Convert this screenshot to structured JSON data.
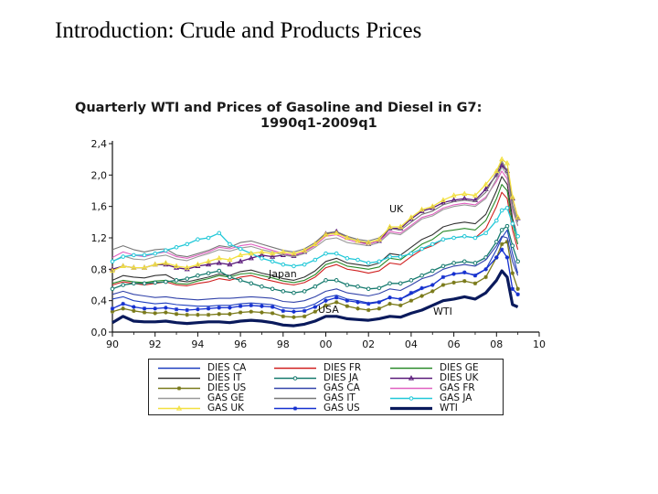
{
  "slide": {
    "title": "Introduction:  Crude and Products Prices"
  },
  "chart_data": {
    "type": "line",
    "title": "Quarterly WTI and  Prices of Gasoline and Diesel in G7:",
    "subtitle": "1990q1-2009q1",
    "xlabel": "",
    "ylabel": "",
    "xlim": [
      1990,
      2010
    ],
    "ylim": [
      0,
      2.4
    ],
    "x_ticks": [
      "90",
      "92",
      "94",
      "96",
      "98",
      "00",
      "02",
      "04",
      "06",
      "08",
      "10"
    ],
    "y_ticks": [
      "0,0",
      "0,4",
      "0,8",
      "1,2",
      "1,6",
      "2,0",
      "2,4"
    ],
    "annotations": [
      "UK",
      "Japan",
      "USA",
      "WTI"
    ],
    "grid": false,
    "legend_position": "bottom",
    "x": [
      1990.0,
      1990.5,
      1991.0,
      1991.5,
      1992.0,
      1992.5,
      1993.0,
      1993.5,
      1994.0,
      1994.5,
      1995.0,
      1995.5,
      1996.0,
      1996.5,
      1997.0,
      1997.5,
      1998.0,
      1998.5,
      1999.0,
      1999.5,
      2000.0,
      2000.5,
      2001.0,
      2001.5,
      2002.0,
      2002.5,
      2003.0,
      2003.5,
      2004.0,
      2004.5,
      2005.0,
      2005.5,
      2006.0,
      2006.5,
      2007.0,
      2007.5,
      2008.0,
      2008.25,
      2008.5,
      2008.75,
      2009.0
    ],
    "series": [
      {
        "name": "DIES CA",
        "color": "#1f3fbf",
        "style": "plain",
        "values": [
          0.42,
          0.45,
          0.4,
          0.38,
          0.36,
          0.37,
          0.35,
          0.34,
          0.33,
          0.33,
          0.34,
          0.34,
          0.36,
          0.37,
          0.36,
          0.35,
          0.31,
          0.3,
          0.31,
          0.36,
          0.44,
          0.47,
          0.42,
          0.4,
          0.37,
          0.39,
          0.44,
          0.42,
          0.48,
          0.55,
          0.6,
          0.7,
          0.74,
          0.75,
          0.73,
          0.8,
          1.05,
          1.2,
          1.3,
          1.0,
          0.75
        ]
      },
      {
        "name": "DIES FR",
        "color": "#d02020",
        "style": "plain",
        "values": [
          0.6,
          0.64,
          0.62,
          0.6,
          0.62,
          0.64,
          0.6,
          0.59,
          0.62,
          0.64,
          0.68,
          0.66,
          0.7,
          0.72,
          0.68,
          0.65,
          0.62,
          0.6,
          0.63,
          0.7,
          0.82,
          0.86,
          0.8,
          0.78,
          0.75,
          0.78,
          0.88,
          0.86,
          0.96,
          1.05,
          1.1,
          1.18,
          1.2,
          1.22,
          1.2,
          1.32,
          1.6,
          1.78,
          1.7,
          1.3,
          1.05
        ]
      },
      {
        "name": "DIES GE",
        "color": "#2a8a2a",
        "style": "plain",
        "values": [
          0.62,
          0.66,
          0.64,
          0.63,
          0.65,
          0.66,
          0.62,
          0.61,
          0.65,
          0.68,
          0.72,
          0.7,
          0.74,
          0.75,
          0.72,
          0.69,
          0.65,
          0.63,
          0.66,
          0.73,
          0.86,
          0.9,
          0.84,
          0.82,
          0.8,
          0.83,
          0.94,
          0.92,
          1.02,
          1.12,
          1.18,
          1.28,
          1.3,
          1.32,
          1.3,
          1.42,
          1.7,
          1.88,
          1.8,
          1.38,
          1.12
        ]
      },
      {
        "name": "DIES IT",
        "color": "#333333",
        "style": "plain",
        "values": [
          0.66,
          0.72,
          0.7,
          0.69,
          0.72,
          0.73,
          0.66,
          0.64,
          0.67,
          0.7,
          0.74,
          0.72,
          0.77,
          0.79,
          0.75,
          0.72,
          0.68,
          0.66,
          0.7,
          0.78,
          0.9,
          0.94,
          0.88,
          0.86,
          0.84,
          0.88,
          1.0,
          0.98,
          1.08,
          1.18,
          1.24,
          1.34,
          1.38,
          1.4,
          1.38,
          1.5,
          1.8,
          1.98,
          1.88,
          1.45,
          1.2
        ]
      },
      {
        "name": "DIES JA",
        "color": "#157a6e",
        "style": "circle",
        "values": [
          0.55,
          0.6,
          0.62,
          0.62,
          0.63,
          0.64,
          0.66,
          0.68,
          0.72,
          0.75,
          0.78,
          0.7,
          0.66,
          0.62,
          0.58,
          0.55,
          0.52,
          0.5,
          0.52,
          0.58,
          0.66,
          0.66,
          0.6,
          0.58,
          0.55,
          0.56,
          0.62,
          0.62,
          0.66,
          0.72,
          0.78,
          0.84,
          0.88,
          0.9,
          0.88,
          0.95,
          1.15,
          1.3,
          1.35,
          1.1,
          0.9
        ]
      },
      {
        "name": "DIES UK",
        "color": "#5a1a7a",
        "style": "triangle",
        "values": [
          0.8,
          0.84,
          0.82,
          0.82,
          0.86,
          0.86,
          0.82,
          0.8,
          0.84,
          0.86,
          0.88,
          0.86,
          0.9,
          0.94,
          0.98,
          0.96,
          0.98,
          0.97,
          1.02,
          1.12,
          1.25,
          1.28,
          1.2,
          1.16,
          1.12,
          1.16,
          1.32,
          1.32,
          1.44,
          1.54,
          1.58,
          1.65,
          1.68,
          1.7,
          1.68,
          1.82,
          2.0,
          2.12,
          2.05,
          1.7,
          1.45
        ]
      },
      {
        "name": "DIES US",
        "color": "#7a7a1a",
        "style": "star",
        "values": [
          0.26,
          0.3,
          0.27,
          0.25,
          0.24,
          0.25,
          0.23,
          0.22,
          0.22,
          0.22,
          0.23,
          0.23,
          0.25,
          0.26,
          0.25,
          0.24,
          0.2,
          0.19,
          0.2,
          0.26,
          0.34,
          0.38,
          0.33,
          0.3,
          0.28,
          0.3,
          0.36,
          0.34,
          0.4,
          0.46,
          0.52,
          0.6,
          0.63,
          0.65,
          0.62,
          0.7,
          0.95,
          1.12,
          1.15,
          0.75,
          0.55
        ]
      },
      {
        "name": "GAS CA",
        "color": "#3344aa",
        "style": "plain",
        "values": [
          0.48,
          0.52,
          0.48,
          0.46,
          0.44,
          0.45,
          0.43,
          0.42,
          0.41,
          0.42,
          0.43,
          0.43,
          0.44,
          0.45,
          0.44,
          0.43,
          0.39,
          0.38,
          0.4,
          0.45,
          0.52,
          0.55,
          0.5,
          0.48,
          0.46,
          0.49,
          0.55,
          0.53,
          0.6,
          0.68,
          0.72,
          0.8,
          0.84,
          0.86,
          0.84,
          0.92,
          1.1,
          1.22,
          1.2,
          0.9,
          0.72
        ]
      },
      {
        "name": "GAS FR",
        "color": "#e060c0",
        "style": "plain",
        "values": [
          0.95,
          1.02,
          0.98,
          0.96,
          1.0,
          1.02,
          0.96,
          0.94,
          0.98,
          1.02,
          1.08,
          1.06,
          1.1,
          1.12,
          1.08,
          1.04,
          1.0,
          0.98,
          1.02,
          1.1,
          1.22,
          1.24,
          1.18,
          1.14,
          1.12,
          1.16,
          1.28,
          1.26,
          1.36,
          1.46,
          1.5,
          1.58,
          1.62,
          1.64,
          1.62,
          1.72,
          1.92,
          2.05,
          1.95,
          1.55,
          1.35
        ]
      },
      {
        "name": "GAS GE",
        "color": "#999999",
        "style": "plain",
        "values": [
          0.9,
          0.97,
          0.93,
          0.92,
          0.96,
          0.98,
          0.93,
          0.91,
          0.96,
          1.0,
          1.05,
          1.03,
          1.07,
          1.09,
          1.05,
          1.02,
          0.98,
          0.96,
          1.0,
          1.08,
          1.18,
          1.2,
          1.14,
          1.12,
          1.1,
          1.14,
          1.26,
          1.24,
          1.34,
          1.44,
          1.48,
          1.56,
          1.6,
          1.62,
          1.6,
          1.7,
          1.95,
          2.1,
          2.0,
          1.58,
          1.36
        ]
      },
      {
        "name": "GAS IT",
        "color": "#777777",
        "style": "plain",
        "values": [
          1.05,
          1.1,
          1.05,
          1.02,
          1.05,
          1.06,
          0.98,
          0.96,
          1.0,
          1.04,
          1.1,
          1.08,
          1.14,
          1.16,
          1.12,
          1.08,
          1.04,
          1.02,
          1.06,
          1.14,
          1.26,
          1.28,
          1.22,
          1.18,
          1.16,
          1.2,
          1.32,
          1.3,
          1.4,
          1.5,
          1.54,
          1.62,
          1.66,
          1.68,
          1.66,
          1.78,
          2.02,
          2.18,
          2.05,
          1.62,
          1.4
        ]
      },
      {
        "name": "GAS JA",
        "color": "#20c8d8",
        "style": "circle",
        "values": [
          0.9,
          0.96,
          0.98,
          0.98,
          1.0,
          1.04,
          1.08,
          1.12,
          1.18,
          1.2,
          1.26,
          1.12,
          1.06,
          1.0,
          0.94,
          0.9,
          0.86,
          0.84,
          0.86,
          0.92,
          1.0,
          1.0,
          0.94,
          0.92,
          0.88,
          0.9,
          0.96,
          0.96,
          1.0,
          1.06,
          1.12,
          1.18,
          1.2,
          1.22,
          1.2,
          1.26,
          1.42,
          1.55,
          1.58,
          1.38,
          1.22
        ]
      },
      {
        "name": "GAS UK",
        "color": "#f2e040",
        "style": "triangle",
        "values": [
          0.78,
          0.84,
          0.82,
          0.82,
          0.86,
          0.88,
          0.84,
          0.82,
          0.86,
          0.9,
          0.94,
          0.92,
          0.98,
          1.0,
          1.02,
          1.0,
          1.02,
          1.0,
          1.04,
          1.12,
          1.24,
          1.26,
          1.2,
          1.16,
          1.14,
          1.18,
          1.34,
          1.34,
          1.46,
          1.56,
          1.6,
          1.68,
          1.74,
          1.76,
          1.74,
          1.88,
          2.05,
          2.2,
          2.15,
          1.72,
          1.46
        ]
      },
      {
        "name": "GAS US",
        "color": "#1530d0",
        "style": "star",
        "values": [
          0.3,
          0.36,
          0.32,
          0.3,
          0.3,
          0.31,
          0.29,
          0.28,
          0.29,
          0.3,
          0.31,
          0.31,
          0.33,
          0.34,
          0.33,
          0.32,
          0.27,
          0.26,
          0.27,
          0.32,
          0.4,
          0.44,
          0.4,
          0.38,
          0.36,
          0.38,
          0.44,
          0.42,
          0.5,
          0.56,
          0.6,
          0.7,
          0.74,
          0.76,
          0.72,
          0.8,
          0.95,
          1.05,
          0.95,
          0.55,
          0.48
        ]
      },
      {
        "name": "WTI",
        "color": "#0a1a5c",
        "style": "thick",
        "values": [
          0.12,
          0.2,
          0.14,
          0.13,
          0.13,
          0.14,
          0.12,
          0.11,
          0.12,
          0.13,
          0.13,
          0.12,
          0.14,
          0.15,
          0.14,
          0.12,
          0.09,
          0.08,
          0.1,
          0.14,
          0.2,
          0.2,
          0.17,
          0.16,
          0.15,
          0.17,
          0.2,
          0.19,
          0.24,
          0.28,
          0.34,
          0.4,
          0.42,
          0.45,
          0.42,
          0.5,
          0.66,
          0.78,
          0.7,
          0.35,
          0.32
        ]
      }
    ]
  }
}
